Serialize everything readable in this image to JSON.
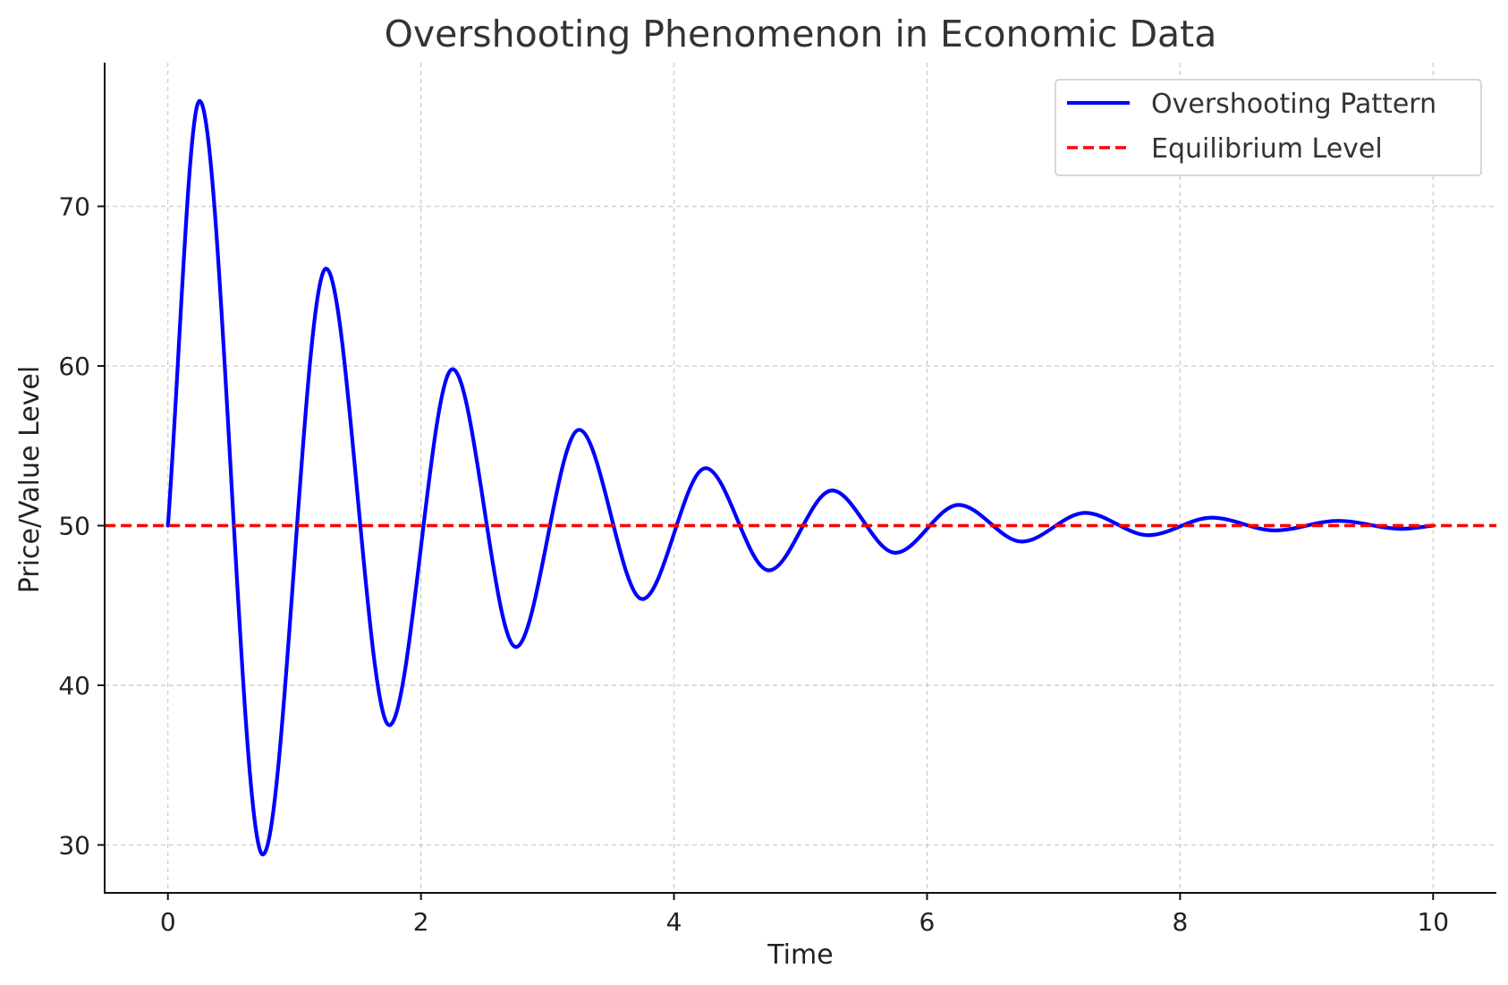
{
  "chart_data": {
    "type": "line",
    "title": "Overshooting Phenomenon in Economic Data",
    "xlabel": "Time",
    "ylabel": "Price/Value Level",
    "xlim": [
      -0.5,
      10.5
    ],
    "ylim": [
      27,
      79
    ],
    "xticks": [
      0,
      2,
      4,
      6,
      8,
      10
    ],
    "yticks": [
      30,
      40,
      50,
      60,
      70
    ],
    "grid": true,
    "legend_position": "top-right",
    "series": [
      {
        "name": "Overshooting Pattern",
        "color": "#0000ff",
        "style": "solid",
        "x": [
          0,
          0.25,
          0.75,
          1.25,
          1.75,
          2.25,
          2.75,
          3.25,
          3.75,
          4.25,
          4.75,
          5.25,
          5.75,
          6.25,
          6.75,
          7.25,
          7.75,
          8.25,
          8.75,
          9.25,
          9.75,
          10
        ],
        "y": [
          50,
          76.6,
          29.4,
          66.1,
          37.5,
          59.8,
          42.4,
          56.0,
          45.4,
          53.6,
          47.2,
          52.2,
          48.3,
          51.3,
          49.0,
          50.8,
          49.4,
          50.5,
          49.7,
          50.3,
          49.8,
          50.0
        ]
      },
      {
        "name": "Equilibrium Level",
        "color": "#ff0000",
        "style": "dashed",
        "x": [
          -0.5,
          10.5
        ],
        "y": [
          50,
          50
        ]
      }
    ]
  }
}
